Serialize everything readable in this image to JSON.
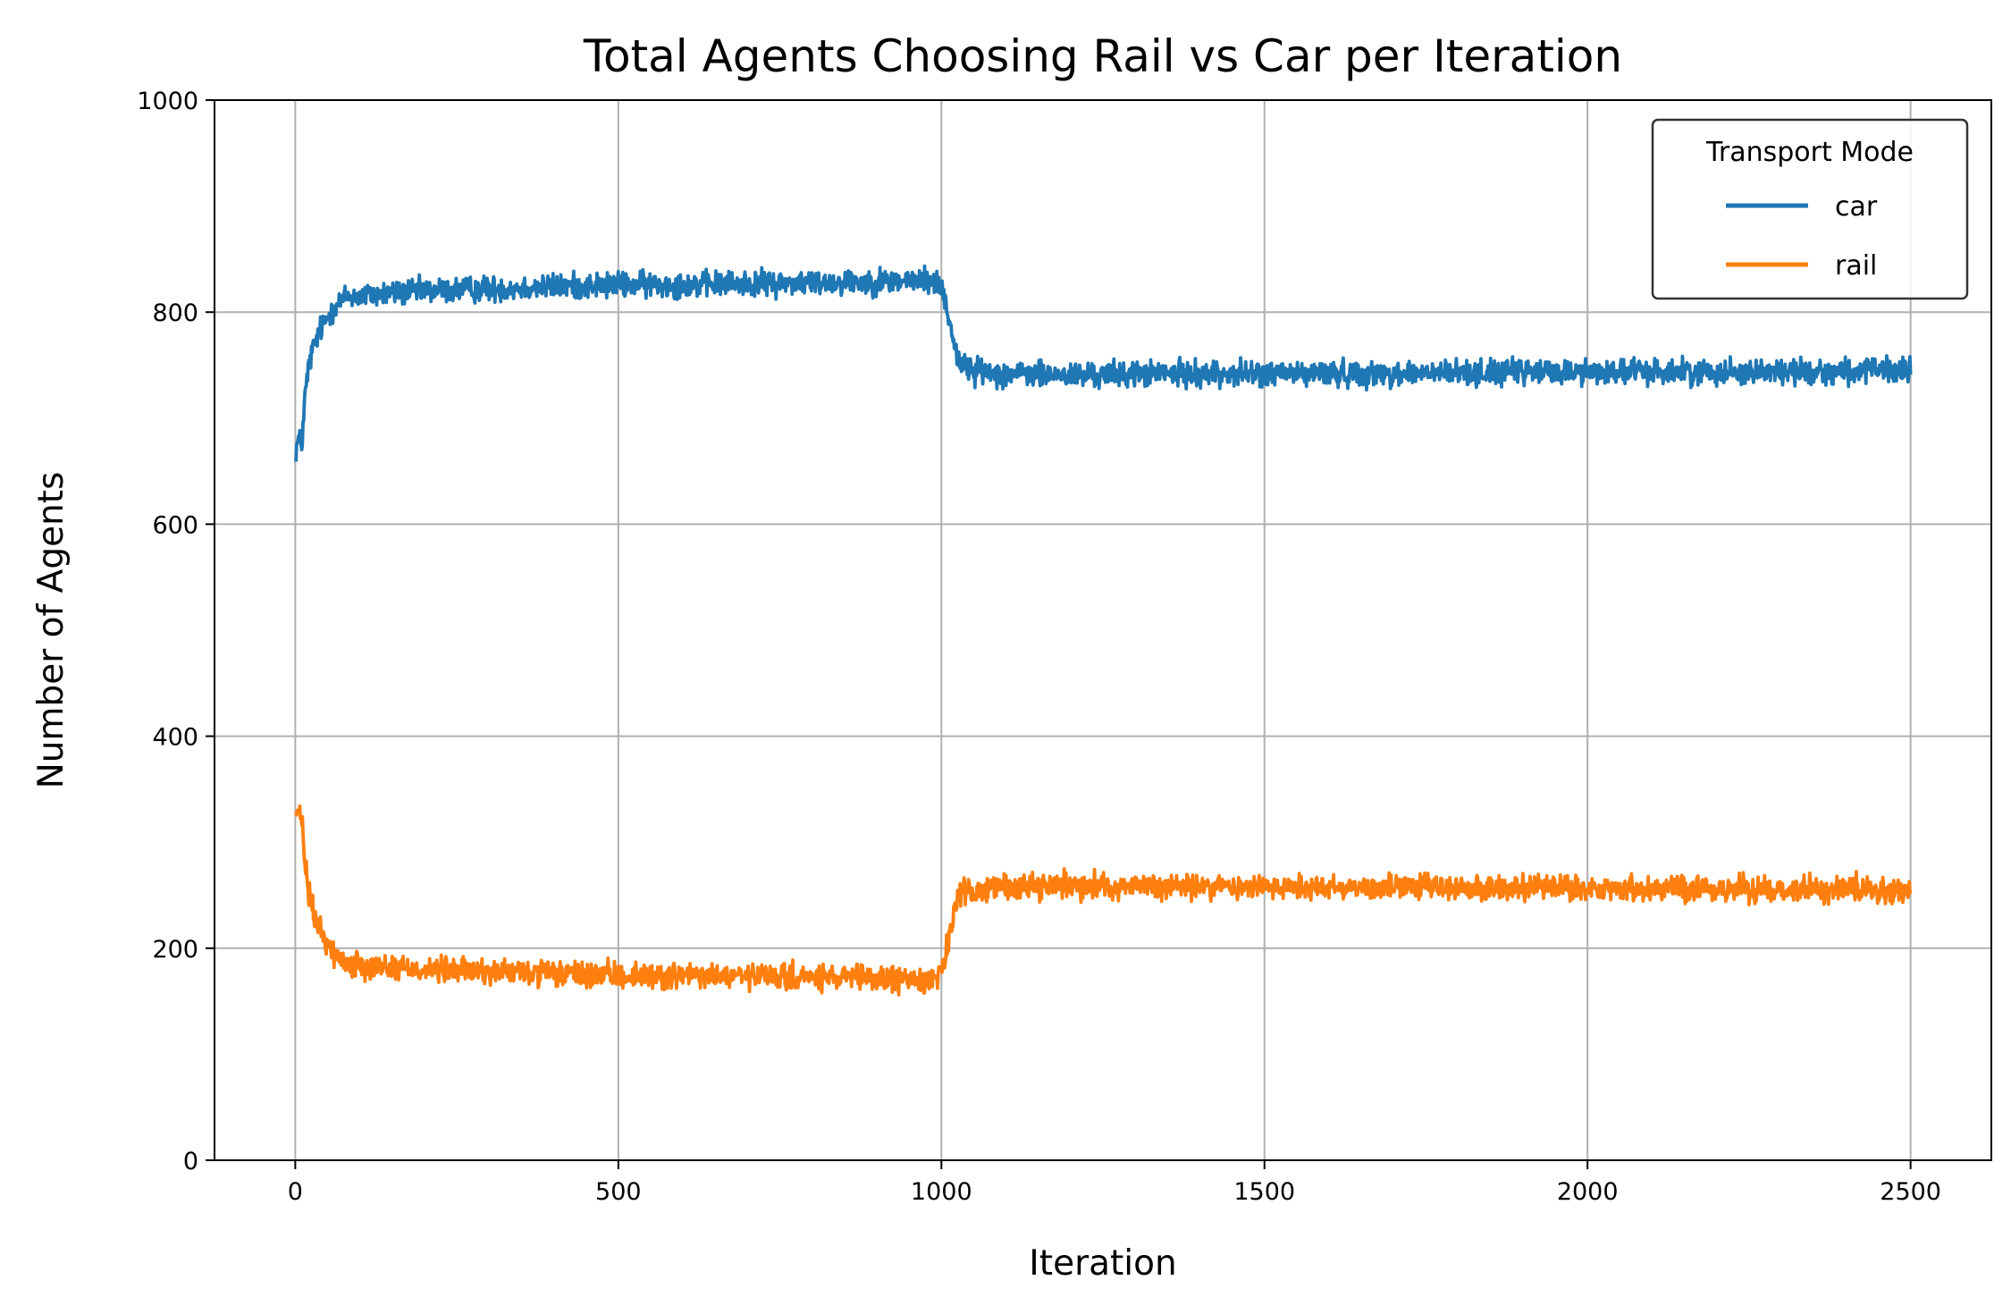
{
  "chart_data": {
    "type": "line",
    "title": "Total Agents Choosing Rail vs Car per Iteration",
    "xlabel": "Iteration",
    "ylabel": "Number of Agents",
    "xlim": [
      -125,
      2625
    ],
    "ylim": [
      0,
      1000
    ],
    "xticks": [
      0,
      500,
      1000,
      1500,
      2000,
      2500
    ],
    "yticks": [
      0,
      200,
      400,
      600,
      800,
      1000
    ],
    "grid": true,
    "legend": {
      "title": "Transport Mode",
      "placement": "top-right"
    },
    "series": [
      {
        "name": "car",
        "color": "#1f77b4",
        "noise": 6,
        "x": [
          1,
          5,
          10,
          15,
          20,
          25,
          30,
          40,
          50,
          60,
          70,
          80,
          100,
          150,
          200,
          300,
          400,
          500,
          600,
          700,
          800,
          900,
          980,
          1000,
          1010,
          1020,
          1030,
          1050,
          1100,
          1200,
          1300,
          1500,
          1700,
          2000,
          2200,
          2400,
          2500
        ],
        "y": [
          670,
          680,
          675,
          720,
          745,
          760,
          770,
          785,
          795,
          805,
          810,
          815,
          815,
          818,
          820,
          822,
          824,
          826,
          826,
          827,
          828,
          829,
          830,
          825,
          800,
          770,
          750,
          745,
          742,
          740,
          742,
          742,
          742,
          744,
          744,
          744,
          745
        ]
      },
      {
        "name": "rail",
        "color": "#ff7f0e",
        "noise": 6,
        "x": [
          1,
          5,
          10,
          15,
          20,
          25,
          30,
          40,
          50,
          60,
          70,
          80,
          100,
          150,
          200,
          300,
          400,
          500,
          600,
          700,
          800,
          900,
          980,
          1000,
          1010,
          1020,
          1030,
          1050,
          1100,
          1200,
          1300,
          1500,
          1700,
          2000,
          2200,
          2400,
          2500
        ],
        "y": [
          330,
          325,
          322,
          280,
          255,
          240,
          230,
          215,
          205,
          195,
          190,
          185,
          185,
          182,
          180,
          178,
          176,
          174,
          174,
          173,
          172,
          171,
          170,
          178,
          205,
          235,
          250,
          255,
          258,
          260,
          258,
          258,
          258,
          256,
          256,
          256,
          255
        ]
      }
    ]
  }
}
